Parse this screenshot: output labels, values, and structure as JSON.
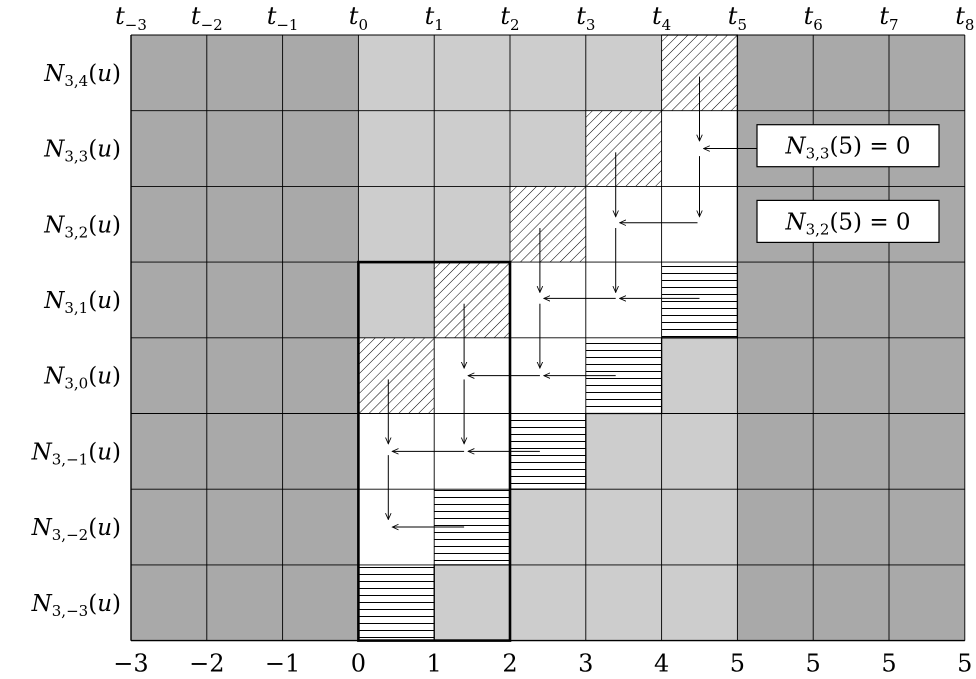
{
  "knots_top": [
    {
      "base": "t",
      "sub": "−3"
    },
    {
      "base": "t",
      "sub": "−2"
    },
    {
      "base": "t",
      "sub": "−1"
    },
    {
      "base": "t",
      "sub": "0"
    },
    {
      "base": "t",
      "sub": "1"
    },
    {
      "base": "t",
      "sub": "2"
    },
    {
      "base": "t",
      "sub": "3"
    },
    {
      "base": "t",
      "sub": "4"
    },
    {
      "base": "t",
      "sub": "5"
    },
    {
      "base": "t",
      "sub": "6"
    },
    {
      "base": "t",
      "sub": "7"
    },
    {
      "base": "t",
      "sub": "8"
    }
  ],
  "knot_values_bottom": [
    "−3",
    "−2",
    "−1",
    "0",
    "1",
    "2",
    "3",
    "4",
    "5",
    "5",
    "5",
    "5"
  ],
  "rows": [
    {
      "sub": "3,4",
      "arg": "(u)"
    },
    {
      "sub": "3,3",
      "arg": "(u)"
    },
    {
      "sub": "3,2",
      "arg": "(u)"
    },
    {
      "sub": "3,1",
      "arg": "(u)"
    },
    {
      "sub": "3,0",
      "arg": "(u)"
    },
    {
      "sub": "3,−1",
      "arg": "(u)"
    },
    {
      "sub": "3,−2",
      "arg": "(u)"
    },
    {
      "sub": "3,−3",
      "arg": "(u)"
    }
  ],
  "row_label_base": "N",
  "annotations": [
    {
      "base": "N",
      "sub": "3,3",
      "rest": "(5) = 0"
    },
    {
      "base": "N",
      "sub": "3,2",
      "rest": "(5) = 0"
    }
  ],
  "cell_states": [
    [
      "dark",
      "dark",
      "dark",
      "light",
      "light",
      "light",
      "light",
      "diag",
      "dark",
      "dark",
      "dark"
    ],
    [
      "dark",
      "dark",
      "dark",
      "light",
      "light",
      "light",
      "diag",
      "white",
      "dark",
      "dark",
      "dark"
    ],
    [
      "dark",
      "dark",
      "dark",
      "light",
      "light",
      "diag",
      "white",
      "white",
      "dark",
      "dark",
      "dark"
    ],
    [
      "dark",
      "dark",
      "dark",
      "light",
      "diag",
      "white",
      "white",
      "horiz",
      "dark",
      "dark",
      "dark"
    ],
    [
      "dark",
      "dark",
      "dark",
      "diag",
      "white",
      "white",
      "horiz",
      "light",
      "dark",
      "dark",
      "dark"
    ],
    [
      "dark",
      "dark",
      "dark",
      "white",
      "white",
      "horiz",
      "light",
      "light",
      "dark",
      "dark",
      "dark"
    ],
    [
      "dark",
      "dark",
      "dark",
      "white",
      "horiz",
      "light",
      "light",
      "light",
      "dark",
      "dark",
      "dark"
    ],
    [
      "dark",
      "dark",
      "dark",
      "horiz",
      "light",
      "light",
      "light",
      "light",
      "dark",
      "dark",
      "dark"
    ]
  ],
  "colors": {
    "dark": "#a9a9a9",
    "light": "#cdcdcd",
    "white": "#ffffff",
    "line": "#000000"
  }
}
